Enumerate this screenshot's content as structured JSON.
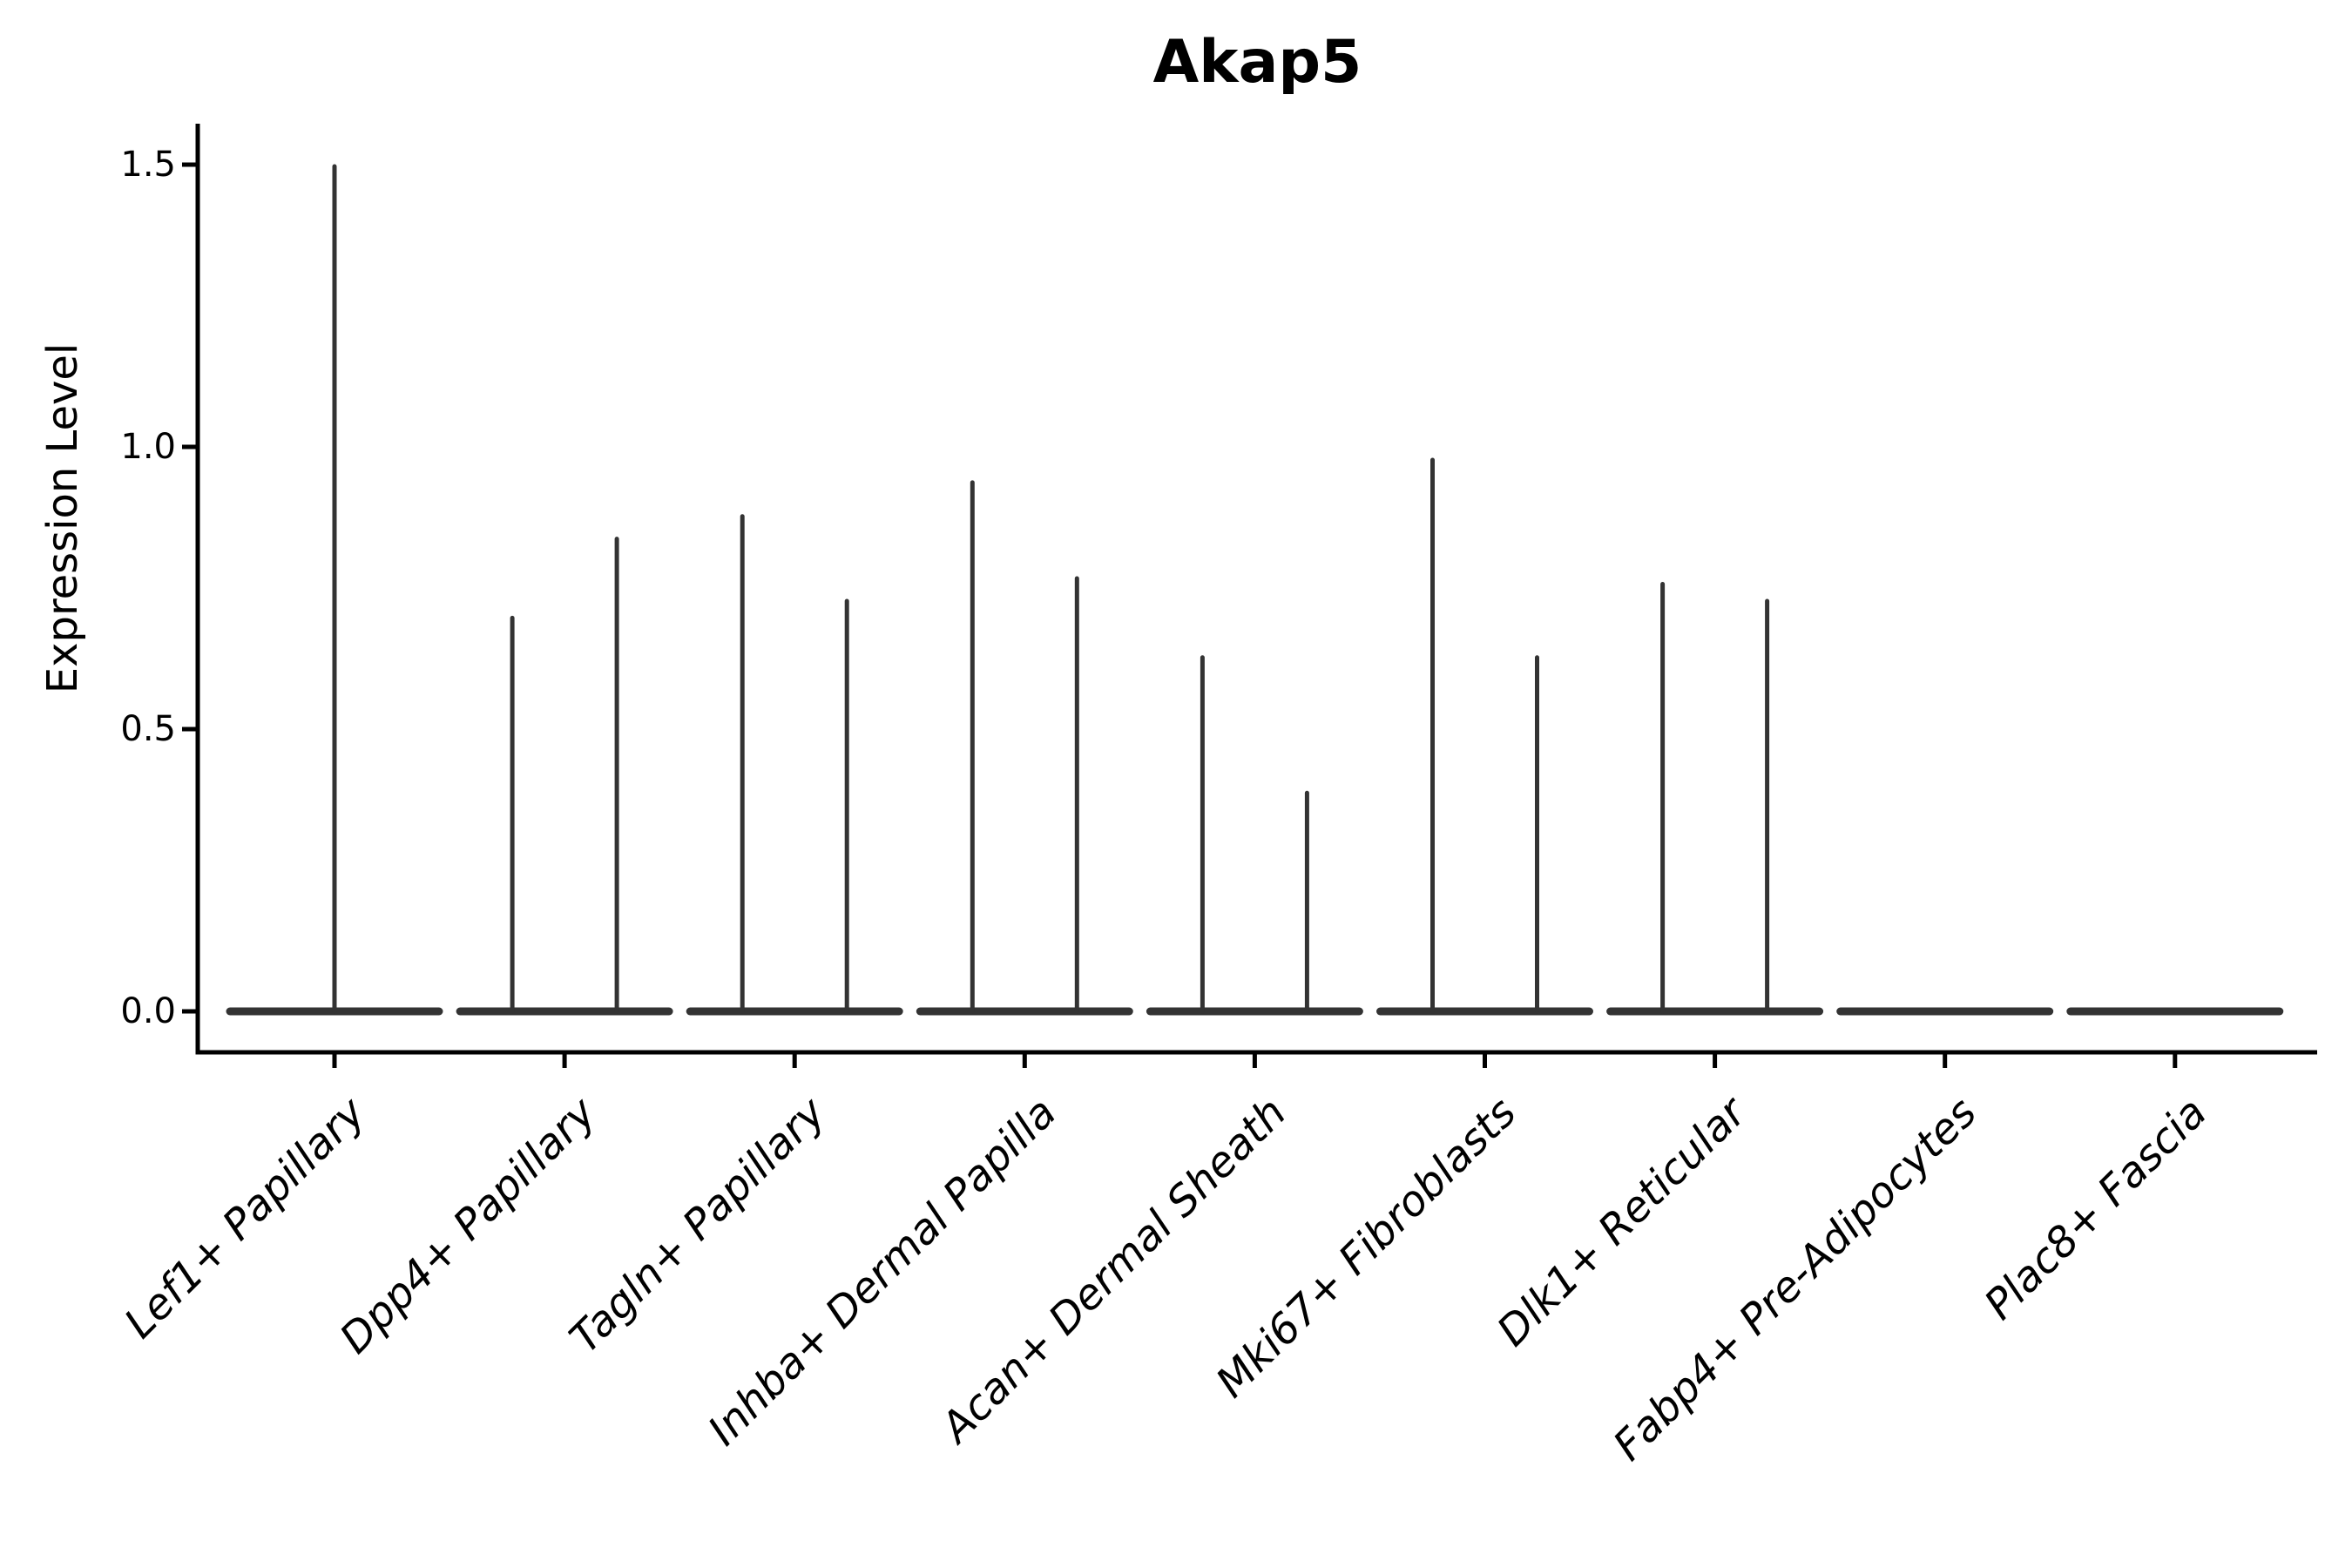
{
  "chart_data": {
    "type": "violin",
    "title": "Akap5",
    "ylabel": "Expression Level",
    "xlabel": "",
    "ytick_labels": [
      "0.0",
      "0.5",
      "1.0",
      "1.5"
    ],
    "ytick_values": [
      0.0,
      0.5,
      1.0,
      1.5
    ],
    "ylim": [
      -0.072,
      1.572
    ],
    "grid": false,
    "legend": "none",
    "violin_color": "#333333",
    "axis_color": "#000000",
    "baseline_value": 0,
    "baseline_halfwidth_units": 0.45,
    "spike_offset_units": 0.225,
    "categories": [
      {
        "label": "Lef1+ Papillary",
        "spikes": [
          {
            "pos": "center",
            "value": 1.5
          }
        ]
      },
      {
        "label": "Dpp4+ Papillary",
        "spikes": [
          {
            "pos": "left",
            "value": 0.7
          },
          {
            "pos": "right",
            "value": 0.84
          }
        ]
      },
      {
        "label": "Tagln+ Papillary",
        "spikes": [
          {
            "pos": "left",
            "value": 0.88
          },
          {
            "pos": "right",
            "value": 0.73
          }
        ]
      },
      {
        "label": "Inhba+ Dermal Papilla",
        "spikes": [
          {
            "pos": "left",
            "value": 0.94
          },
          {
            "pos": "right",
            "value": 0.77
          }
        ]
      },
      {
        "label": "Acan+ Dermal Sheath",
        "spikes": [
          {
            "pos": "left",
            "value": 0.63
          },
          {
            "pos": "right",
            "value": 0.39
          }
        ]
      },
      {
        "label": "Mki67+ Fibroblasts",
        "spikes": [
          {
            "pos": "left",
            "value": 0.98
          },
          {
            "pos": "right",
            "value": 0.63
          }
        ]
      },
      {
        "label": "Dlk1+ Reticular",
        "spikes": [
          {
            "pos": "left",
            "value": 0.76
          },
          {
            "pos": "right",
            "value": 0.73
          }
        ]
      },
      {
        "label": "Fabp4+ Pre-Adipocytes",
        "spikes": []
      },
      {
        "label": "Plac8+ Fascia",
        "spikes": []
      }
    ]
  }
}
